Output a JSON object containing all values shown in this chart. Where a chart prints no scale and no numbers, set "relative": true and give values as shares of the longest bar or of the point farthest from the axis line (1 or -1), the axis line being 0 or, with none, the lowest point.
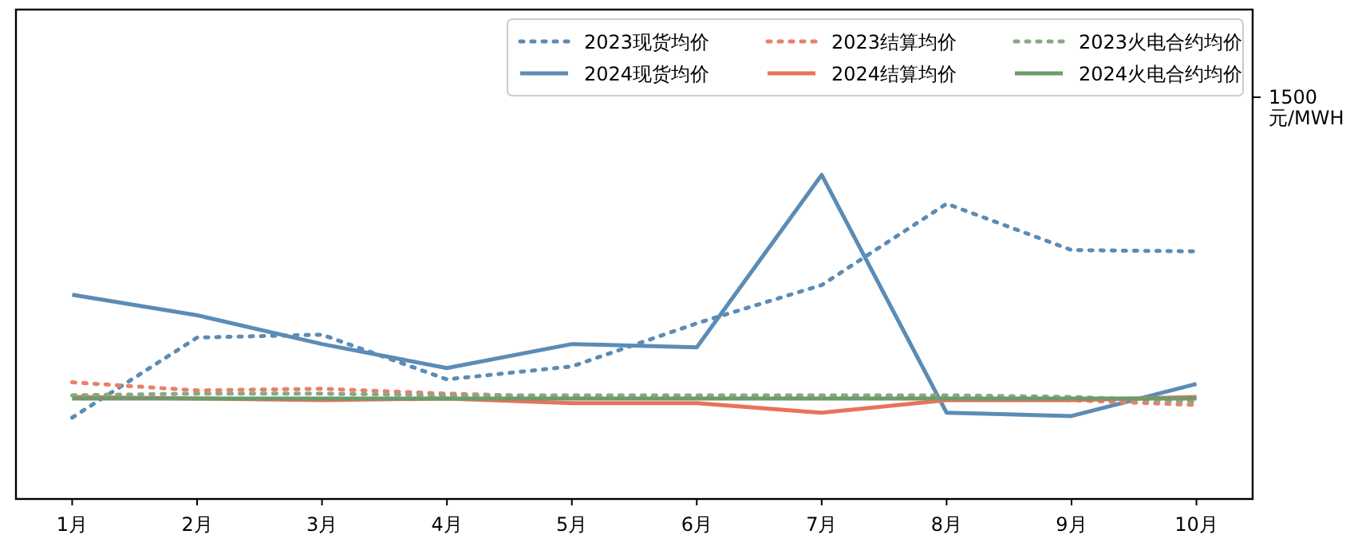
{
  "chart_data": {
    "type": "line",
    "relative": true,
    "ylabel": "元/MWH",
    "annotations": [
      "1500"
    ],
    "categories": [
      "1月",
      "2月",
      "3月",
      "4月",
      "5月",
      "6月",
      "7月",
      "8月",
      "9月",
      "10月"
    ],
    "legend": "top right",
    "grid": false,
    "series": [
      {
        "name": "2023现货均价",
        "color": "#5b8cb5",
        "line_style": "dotted",
        "values": [
          0.251,
          0.498,
          0.507,
          0.369,
          0.409,
          0.542,
          0.66,
          0.911,
          0.768,
          0.764
        ]
      },
      {
        "name": "2024现货均价",
        "color": "#5b8cb5",
        "line_style": "solid",
        "values": [
          0.63,
          0.567,
          0.478,
          0.404,
          0.478,
          0.468,
          1.0,
          0.266,
          0.256,
          0.355
        ]
      },
      {
        "name": "2023结算均价",
        "color": "#e8806a",
        "line_style": "dotted",
        "values": [
          0.36,
          0.335,
          0.34,
          0.325,
          0.315,
          0.315,
          0.315,
          0.315,
          0.305,
          0.29
        ]
      },
      {
        "name": "2024结算均价",
        "color": "#e8735a",
        "line_style": "solid",
        "values": [
          0.315,
          0.31,
          0.305,
          0.31,
          0.296,
          0.296,
          0.266,
          0.305,
          0.305,
          0.315
        ]
      },
      {
        "name": "2023火电合约均价",
        "color": "#8aa884",
        "line_style": "dotted",
        "values": [
          0.32,
          0.325,
          0.325,
          0.32,
          0.32,
          0.32,
          0.32,
          0.32,
          0.315,
          0.3
        ]
      },
      {
        "name": "2024火电合约均价",
        "color": "#6f9a6b",
        "line_style": "solid",
        "values": [
          0.31,
          0.31,
          0.31,
          0.31,
          0.31,
          0.31,
          0.31,
          0.31,
          0.31,
          0.31
        ]
      }
    ]
  }
}
